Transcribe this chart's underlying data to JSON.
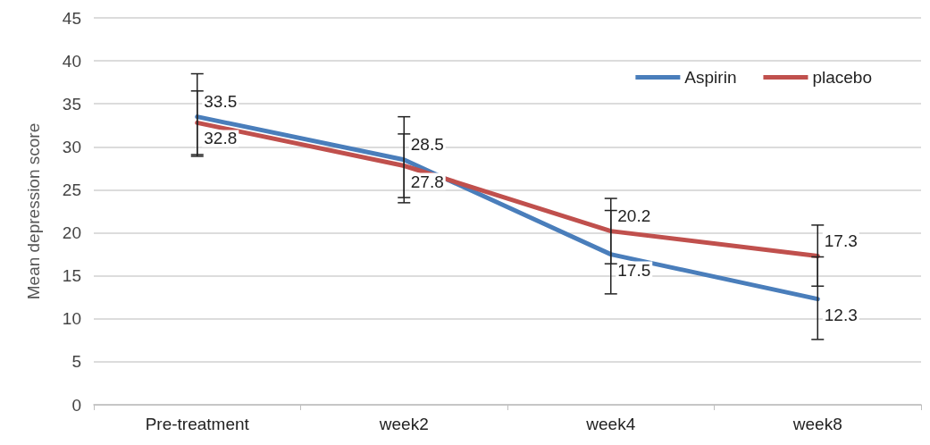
{
  "chart_data": {
    "type": "line",
    "ylabel": "Mean depression score",
    "categories": [
      "Pre-treatment",
      "week2",
      "week4",
      "week8"
    ],
    "series": [
      {
        "name": "Aspirin",
        "color": "#4a7ebb",
        "values": [
          33.5,
          28.5,
          17.5,
          12.3
        ],
        "errors": [
          [
            28.9,
            38.5
          ],
          [
            23.5,
            33.5
          ],
          [
            12.9,
            22.6
          ],
          [
            7.6,
            17.2
          ]
        ]
      },
      {
        "name": "placebo",
        "color": "#c0504d",
        "values": [
          32.8,
          27.8,
          20.2,
          17.3
        ],
        "errors": [
          [
            29.1,
            36.5
          ],
          [
            24.1,
            31.5
          ],
          [
            16.4,
            24.0
          ],
          [
            13.8,
            20.9
          ]
        ]
      }
    ],
    "ylim": [
      0,
      45
    ],
    "yticks": [
      0,
      5,
      10,
      15,
      20,
      25,
      30,
      35,
      40,
      45
    ],
    "grid": "y",
    "legend": "top right",
    "marker": "none",
    "line_style": "solid",
    "data_labels": true
  }
}
